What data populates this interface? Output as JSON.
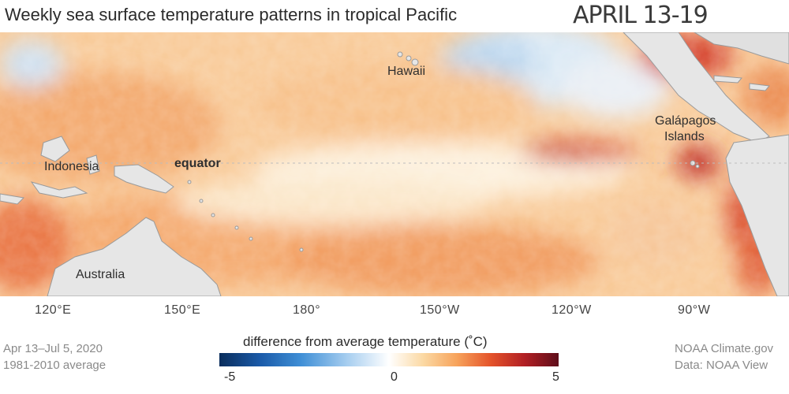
{
  "title": "Weekly sea surface temperature patterns in tropical Pacific",
  "date_label": "APRIL 13-19",
  "places": {
    "hawaii": "Hawaii",
    "galapagos_line1": "Galápagos",
    "galapagos_line2": "Islands",
    "indonesia": "Indonesia",
    "equator": "equator",
    "australia": "Australia"
  },
  "longitude_labels": [
    "120°E",
    "150°E",
    "180°",
    "150°W",
    "120°W",
    "90°W"
  ],
  "legend": {
    "title": "difference from average temperature (˚C)",
    "min": "-5",
    "mid": "0",
    "max": "5",
    "colors": [
      "#0a2d5c",
      "#3f8fd6",
      "#ffffff",
      "#f7a35b",
      "#b11f24",
      "#5e0d1a"
    ]
  },
  "footer_left": {
    "line1": "Apr 13–Jul 5, 2020",
    "line2": "1981-2010 average"
  },
  "footer_right": {
    "line1": "NOAA Climate.gov",
    "line2": "Data: NOAA View"
  }
}
